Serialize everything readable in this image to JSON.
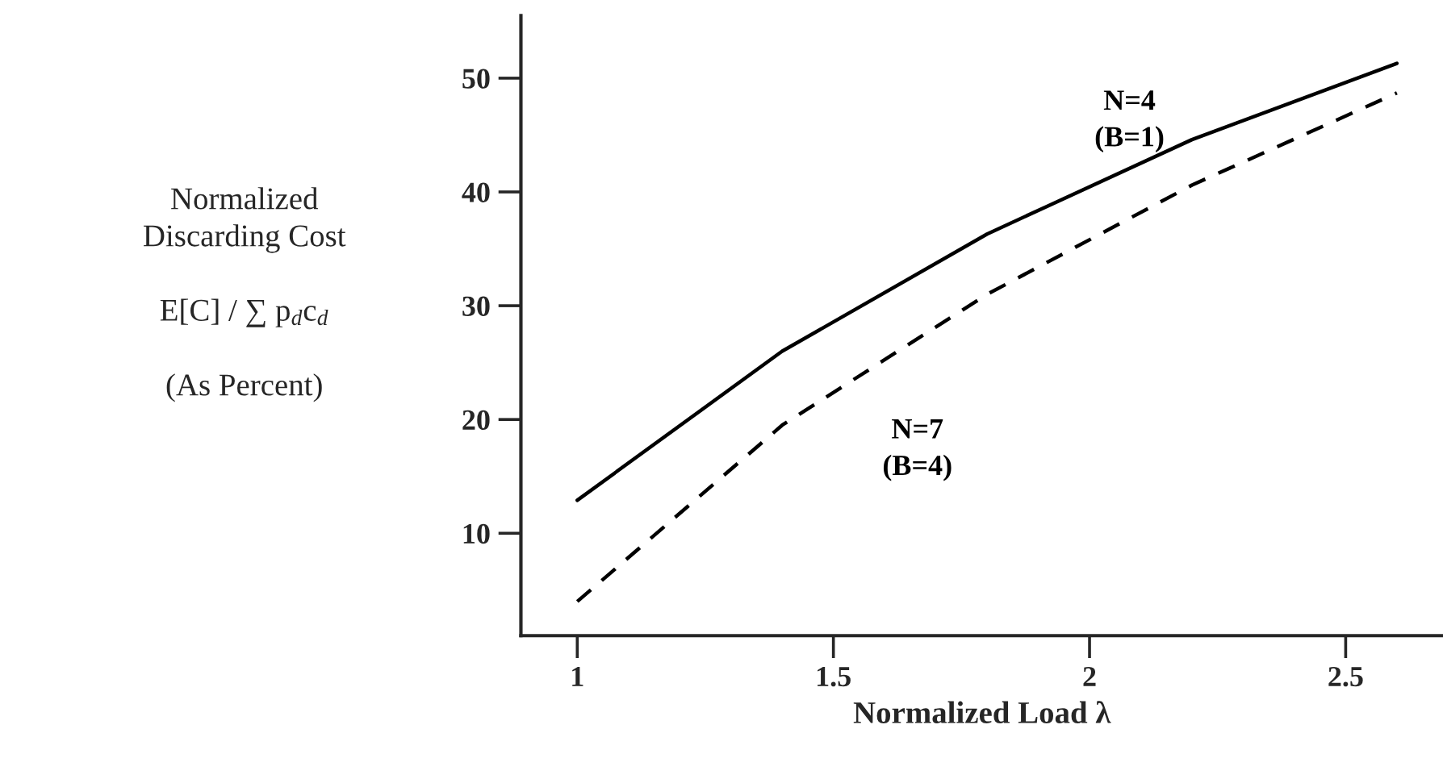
{
  "chart_data": {
    "type": "line",
    "xlabel": "Normalized Load λ",
    "ylabel": "Normalized\nDiscarding Cost\n\nE[C] / ∑ p$_{d}$c$_{d}$\n\n(As Percent)",
    "x": [
      1,
      1.4,
      1.8,
      2.2,
      2.6
    ],
    "series": [
      {
        "name": "N=4\n(B=1)",
        "color": "#000000",
        "line_style": "solid",
        "values": [
          12.9,
          26.0,
          36.3,
          44.6,
          51.3
        ]
      },
      {
        "name": "N=7\n(B=4)",
        "color": "#000000",
        "line_style": "dashed",
        "values": [
          4.0,
          19.5,
          31.0,
          40.6,
          48.7
        ]
      }
    ],
    "xlim": [
      0.89,
      2.69
    ],
    "ylim": [
      1,
      55.5
    ],
    "xticks": [
      1,
      1.5,
      2,
      2.5
    ],
    "yticks": [
      10,
      20,
      30,
      40,
      50
    ],
    "grid": false,
    "legend": false,
    "marker": "none"
  }
}
